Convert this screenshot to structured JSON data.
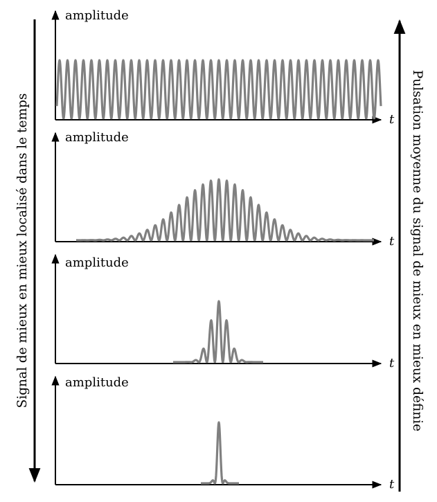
{
  "left_arrow_label": "Signal de mieux en mieux localisé dans le temps",
  "right_arrow_label": "Pulsation moyenne du signal de mieux en mieux définie",
  "panels": [
    {
      "ylabel": "amplitude",
      "xlabel": "t",
      "envelope": "constant"
    },
    {
      "ylabel": "amplitude",
      "xlabel": "t",
      "envelope": "wide gaussian"
    },
    {
      "ylabel": "amplitude",
      "xlabel": "t",
      "envelope": "narrow gaussian"
    },
    {
      "ylabel": "amplitude",
      "xlabel": "t",
      "envelope": "very narrow gaussian"
    }
  ],
  "colors": {
    "waveform": "#808080",
    "axes": "#000000"
  }
}
